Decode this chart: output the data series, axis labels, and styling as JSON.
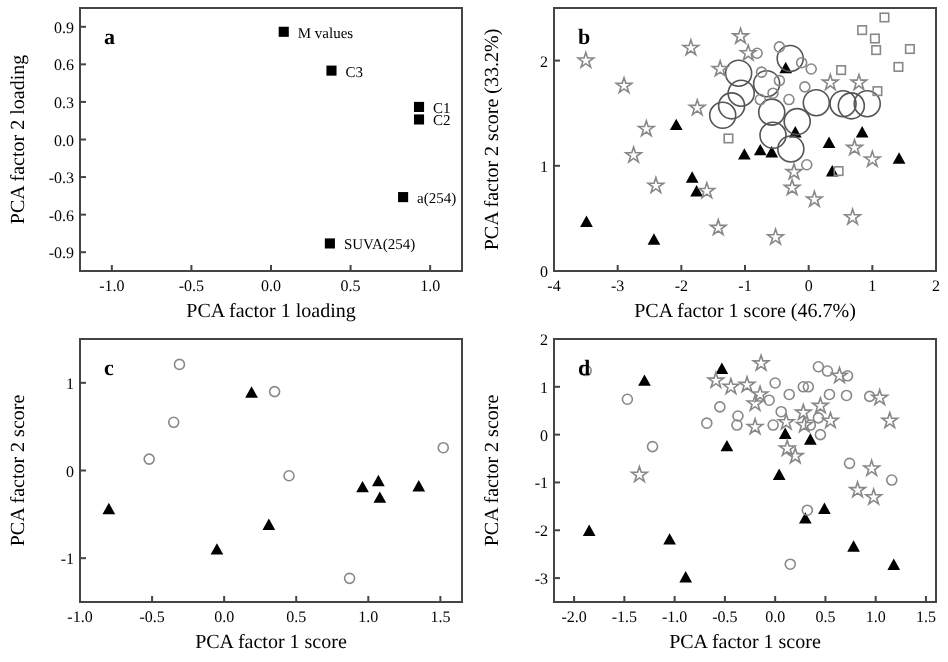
{
  "chart_data": [
    {
      "type": "scatter",
      "xlabel": "PCA factor 1 loading",
      "ylabel": "PCA factor 2 loading",
      "annotations": [
        "a",
        {
          "text": "M values",
          "x": 0.08,
          "y": 0.86
        },
        {
          "text": "C3",
          "x": 0.38,
          "y": 0.55
        },
        {
          "text": "C1",
          "x": 0.93,
          "y": 0.26
        },
        {
          "text": "C2",
          "x": 0.93,
          "y": 0.16
        },
        {
          "text": "a(254)",
          "x": 0.83,
          "y": -0.46
        },
        {
          "text": "SUVA(254)",
          "x": 0.37,
          "y": -0.83
        }
      ],
      "xlim": [
        -1.2,
        1.2
      ],
      "ylim": [
        -1.05,
        1.05
      ],
      "xticks": [
        {
          "value": -1,
          "label": "-1.0"
        },
        {
          "value": -0.5,
          "label": "-0.5"
        },
        {
          "value": 0,
          "label": "0.0"
        },
        {
          "value": 0.5,
          "label": "0.5"
        },
        {
          "value": 1,
          "label": "1.0"
        }
      ],
      "yticks": [
        {
          "value": -0.9,
          "label": "-0.9"
        },
        {
          "value": -0.6,
          "label": "-0.6"
        },
        {
          "value": -0.3,
          "label": "-0.3"
        },
        {
          "value": 0,
          "label": "0.0"
        },
        {
          "value": 0.3,
          "label": "0.3"
        },
        {
          "value": 0.6,
          "label": "0.6"
        },
        {
          "value": 0.9,
          "label": "0.9"
        }
      ],
      "series": [
        {
          "color": "#000000",
          "marker": "square",
          "x": [
            0.08,
            0.38,
            0.93,
            0.93,
            0.83,
            0.37
          ],
          "values": [
            0.86,
            0.55,
            0.26,
            0.16,
            -0.46,
            -0.83
          ]
        }
      ]
    },
    {
      "type": "scatter",
      "xlabel": "PCA factor 1 score (46.7%)",
      "ylabel": "PCA factor 2 score (33.2%)",
      "annotations": [
        "b"
      ],
      "xlim": [
        -4,
        2
      ],
      "ylim": [
        0,
        2.5
      ],
      "xticks": [
        -4,
        -3,
        -2,
        -1,
        0,
        1,
        2
      ],
      "yticks": [
        0,
        1,
        2
      ],
      "series": [
        {
          "color": "#000000",
          "marker": "triangle",
          "x": [
            -3.49,
            -2.43,
            -2.08,
            -1.83,
            -1.76,
            -1.01,
            -0.76,
            -0.58,
            -0.36,
            -0.21,
            0.32,
            0.37,
            0.84,
            1.42
          ],
          "values": [
            0.46,
            0.29,
            1.38,
            0.88,
            0.75,
            1.1,
            1.14,
            1.12,
            1.92,
            1.31,
            1.21,
            0.94,
            1.31,
            1.06
          ]
        },
        {
          "type": "bubble",
          "color": "#555555",
          "marker": "circle",
          "x": [
            -1.1,
            -1.06,
            -1.21,
            -1.35,
            -0.66,
            -0.58,
            -0.56,
            -0.28,
            -0.29,
            -0.18,
            0.12,
            0.54,
            0.67,
            0.92
          ],
          "values": [
            1.88,
            1.69,
            1.57,
            1.48,
            1.78,
            1.51,
            1.29,
            1.16,
            2.02,
            1.42,
            1.6,
            1.59,
            1.57,
            1.59
          ],
          "sizes": [
            1,
            1,
            1,
            1,
            1,
            1,
            1,
            1,
            1,
            1,
            1,
            1,
            1,
            1
          ]
        },
        {
          "color": "#888888",
          "marker": "star",
          "x": [
            -3.5,
            -2.9,
            -2.55,
            -2.75,
            -2.4,
            -1.85,
            -1.75,
            -1.6,
            -1.42,
            -1.39,
            -1.07,
            -0.95,
            -0.52,
            -0.26,
            -0.23,
            0.09,
            0.34,
            0.69,
            1.0,
            0.79,
            0.72
          ],
          "values": [
            2.0,
            1.76,
            1.35,
            1.1,
            0.81,
            2.12,
            1.55,
            0.76,
            0.41,
            1.92,
            2.23,
            2.07,
            0.32,
            0.79,
            0.94,
            0.68,
            1.79,
            0.51,
            1.06,
            1.79,
            1.17
          ]
        },
        {
          "color": "#888888",
          "marker": "circle",
          "x": [
            -0.81,
            -0.46,
            -0.74,
            -0.76,
            -0.56,
            -0.11,
            0.04,
            -0.06,
            -0.03,
            -0.46,
            -0.31
          ],
          "values": [
            2.07,
            2.13,
            1.89,
            1.63,
            1.69,
            1.98,
            1.92,
            1.75,
            1.01,
            1.81,
            1.63
          ]
        },
        {
          "color": "#888888",
          "marker": "square",
          "x": [
            -1.26,
            0.51,
            0.84,
            1.04,
            1.06,
            1.19,
            1.08,
            1.41,
            1.59,
            0.47
          ],
          "values": [
            1.26,
            1.91,
            2.29,
            2.21,
            2.1,
            2.41,
            1.71,
            1.94,
            2.11,
            0.95
          ]
        }
      ]
    },
    {
      "type": "scatter",
      "xlabel": "PCA factor 1 score",
      "ylabel": "PCA factor 2 score",
      "annotations": [
        "c"
      ],
      "xlim": [
        -1,
        1.65
      ],
      "ylim": [
        -1.5,
        1.5
      ],
      "xticks": [
        {
          "value": -1,
          "label": "-1.0"
        },
        {
          "value": -0.5,
          "label": "-0.5"
        },
        {
          "value": 0,
          "label": "0.0"
        },
        {
          "value": 0.5,
          "label": "0.5"
        },
        {
          "value": 1,
          "label": "1.0"
        },
        {
          "value": 1.5,
          "label": "1.5"
        }
      ],
      "yticks": [
        -1,
        0,
        1
      ],
      "series": [
        {
          "color": "#000000",
          "marker": "triangle",
          "x": [
            -0.8,
            -0.05,
            0.19,
            0.31,
            0.96,
            1.07,
            1.08,
            1.35
          ],
          "values": [
            -0.45,
            -0.91,
            0.88,
            -0.63,
            -0.2,
            -0.13,
            -0.32,
            -0.19
          ]
        },
        {
          "color": "#888888",
          "marker": "circle",
          "x": [
            -0.52,
            -0.35,
            -0.31,
            0.35,
            0.45,
            0.87,
            1.52
          ],
          "values": [
            0.13,
            0.55,
            1.21,
            0.9,
            -0.06,
            -1.23,
            0.26
          ]
        }
      ]
    },
    {
      "type": "scatter",
      "xlabel": "PCA factor 1 score",
      "ylabel": "PCA factor 2 score",
      "annotations": [
        "d"
      ],
      "xlim": [
        -2.2,
        1.6
      ],
      "ylim": [
        -3.5,
        2
      ],
      "xticks": [
        {
          "value": -2,
          "label": "-2.0"
        },
        {
          "value": -1.5,
          "label": "-1.5"
        },
        {
          "value": -1,
          "label": "-1.0"
        },
        {
          "value": -0.5,
          "label": "-0.5"
        },
        {
          "value": 0,
          "label": "0.0"
        },
        {
          "value": 0.5,
          "label": "0.5"
        },
        {
          "value": 1,
          "label": "1.0"
        },
        {
          "value": 1.5,
          "label": "1.5"
        }
      ],
      "yticks": [
        -3,
        -2,
        -1,
        0,
        1,
        2
      ],
      "series": [
        {
          "color": "#000000",
          "marker": "triangle",
          "x": [
            -1.85,
            -1.3,
            -1.05,
            -0.89,
            -0.53,
            -0.48,
            0.04,
            0.1,
            0.35,
            0.3,
            0.49,
            0.78,
            1.18
          ],
          "values": [
            -2.03,
            1.11,
            -2.21,
            -3.0,
            1.36,
            -0.26,
            -0.86,
            0.0,
            -0.12,
            -1.77,
            -1.57,
            -2.36,
            -2.74
          ]
        },
        {
          "color": "#888888",
          "marker": "circle",
          "x": [
            -1.88,
            -1.47,
            -1.22,
            -0.68,
            -0.55,
            -0.37,
            -0.38,
            0.0,
            -0.06,
            -0.02,
            0.06,
            0.14,
            0.28,
            0.33,
            0.43,
            0.52,
            0.54,
            0.43,
            0.45,
            0.35,
            0.72,
            0.71,
            0.74,
            0.94,
            1.16,
            0.15,
            0.32
          ],
          "values": [
            1.34,
            0.74,
            -0.25,
            0.24,
            0.58,
            0.39,
            0.2,
            1.08,
            0.72,
            0.2,
            0.48,
            0.84,
            1.0,
            1.0,
            1.42,
            1.33,
            0.84,
            0.35,
            0.0,
            0.2,
            1.23,
            0.82,
            -0.6,
            0.8,
            -0.95,
            -2.71,
            -1.58
          ]
        },
        {
          "color": "#888888",
          "marker": "star",
          "x": [
            -1.35,
            -0.59,
            -0.44,
            -0.28,
            -0.14,
            -0.15,
            -0.2,
            -0.2,
            0.12,
            0.2,
            0.11,
            0.28,
            0.29,
            0.45,
            0.55,
            0.64,
            0.82,
            0.96,
            0.98,
            1.04,
            1.14
          ],
          "values": [
            -0.84,
            1.13,
            1.0,
            1.04,
            1.49,
            0.84,
            0.65,
            0.16,
            -0.29,
            -0.45,
            0.26,
            0.46,
            0.2,
            0.6,
            0.29,
            1.23,
            -1.16,
            -0.71,
            -1.31,
            0.77,
            0.29
          ]
        }
      ]
    }
  ]
}
